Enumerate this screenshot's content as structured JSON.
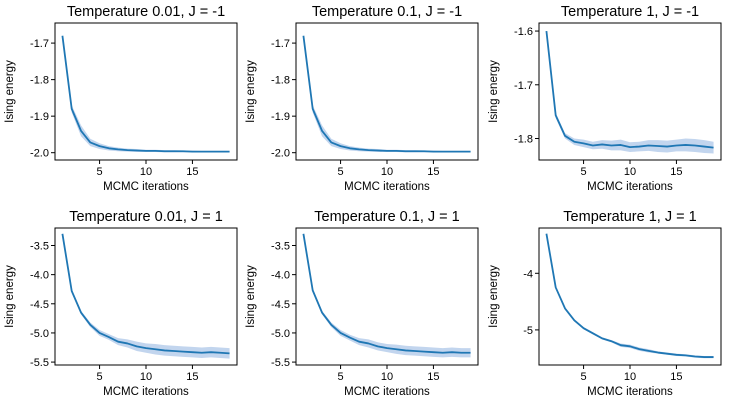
{
  "chart_data": [
    {
      "type": "line",
      "title": "Temperature 0.01, J = -1",
      "xlabel": "MCMC iterations",
      "ylabel": "Ising energy",
      "xlim": [
        0.2,
        19.8
      ],
      "ylim": [
        -2.02,
        -1.645
      ],
      "xticks": [
        5,
        10,
        15
      ],
      "yticks": [
        -2.0,
        -1.9,
        -1.8,
        -1.7
      ],
      "ytick_labels": [
        "-2.0",
        "-1.9",
        "-1.8",
        "-1.7"
      ],
      "x": [
        1,
        2,
        3,
        4,
        5,
        6,
        7,
        8,
        9,
        10,
        11,
        12,
        13,
        14,
        15,
        16,
        17,
        18,
        19
      ],
      "series": [
        {
          "name": "mean",
          "color": "#1f77b4",
          "band_color": "#aec7e8",
          "values": [
            -1.68,
            -1.88,
            -1.94,
            -1.972,
            -1.982,
            -1.988,
            -1.991,
            -1.993,
            -1.994,
            -1.995,
            -1.995,
            -1.996,
            -1.996,
            -1.996,
            -1.997,
            -1.997,
            -1.997,
            -1.997,
            -1.997
          ],
          "lower": [
            -1.68,
            -1.89,
            -1.955,
            -1.982,
            -1.99,
            -1.994,
            -1.996,
            -1.997,
            -1.998,
            -1.998,
            -1.998,
            -1.999,
            -1.999,
            -1.999,
            -1.999,
            -1.999,
            -1.999,
            -1.999,
            -1.999
          ],
          "upper": [
            -1.68,
            -1.87,
            -1.925,
            -1.962,
            -1.974,
            -1.982,
            -1.986,
            -1.989,
            -1.99,
            -1.992,
            -1.992,
            -1.993,
            -1.993,
            -1.994,
            -1.994,
            -1.995,
            -1.995,
            -1.995,
            -1.995
          ]
        }
      ]
    },
    {
      "type": "line",
      "title": "Temperature 0.1, J = -1",
      "xlabel": "MCMC iterations",
      "ylabel": "Ising energy",
      "xlim": [
        0.2,
        19.8
      ],
      "ylim": [
        -2.02,
        -1.645
      ],
      "xticks": [
        5,
        10,
        15
      ],
      "yticks": [
        -2.0,
        -1.9,
        -1.8,
        -1.7
      ],
      "ytick_labels": [
        "-2.0",
        "-1.9",
        "-1.8",
        "-1.7"
      ],
      "x": [
        1,
        2,
        3,
        4,
        5,
        6,
        7,
        8,
        9,
        10,
        11,
        12,
        13,
        14,
        15,
        16,
        17,
        18,
        19
      ],
      "series": [
        {
          "name": "mean",
          "color": "#1f77b4",
          "band_color": "#aec7e8",
          "values": [
            -1.68,
            -1.88,
            -1.94,
            -1.972,
            -1.982,
            -1.988,
            -1.991,
            -1.993,
            -1.994,
            -1.995,
            -1.995,
            -1.996,
            -1.996,
            -1.996,
            -1.997,
            -1.997,
            -1.997,
            -1.997,
            -1.997
          ],
          "lower": [
            -1.68,
            -1.89,
            -1.955,
            -1.982,
            -1.99,
            -1.994,
            -1.996,
            -1.997,
            -1.998,
            -1.998,
            -1.998,
            -1.999,
            -1.999,
            -1.999,
            -1.999,
            -1.999,
            -1.999,
            -1.999,
            -1.999
          ],
          "upper": [
            -1.68,
            -1.87,
            -1.925,
            -1.962,
            -1.974,
            -1.982,
            -1.986,
            -1.989,
            -1.99,
            -1.992,
            -1.992,
            -1.993,
            -1.993,
            -1.994,
            -1.994,
            -1.995,
            -1.995,
            -1.995,
            -1.995
          ]
        }
      ]
    },
    {
      "type": "line",
      "title": "Temperature 1, J = -1",
      "xlabel": "MCMC iterations",
      "ylabel": "Ising energy",
      "xlim": [
        0.2,
        19.8
      ],
      "ylim": [
        -1.84,
        -1.585
      ],
      "xticks": [
        5,
        10,
        15
      ],
      "yticks": [
        -1.8,
        -1.7,
        -1.6
      ],
      "ytick_labels": [
        "-1.8",
        "-1.7",
        "-1.6"
      ],
      "x": [
        1,
        2,
        3,
        4,
        5,
        6,
        7,
        8,
        9,
        10,
        11,
        12,
        13,
        14,
        15,
        16,
        17,
        18,
        19
      ],
      "series": [
        {
          "name": "mean",
          "color": "#1f77b4",
          "band_color": "#aec7e8",
          "values": [
            -1.6,
            -1.757,
            -1.795,
            -1.806,
            -1.809,
            -1.813,
            -1.811,
            -1.813,
            -1.812,
            -1.816,
            -1.815,
            -1.813,
            -1.814,
            -1.815,
            -1.813,
            -1.812,
            -1.813,
            -1.815,
            -1.817
          ],
          "lower": [
            -1.6,
            -1.762,
            -1.8,
            -1.812,
            -1.816,
            -1.82,
            -1.819,
            -1.822,
            -1.822,
            -1.825,
            -1.824,
            -1.823,
            -1.825,
            -1.826,
            -1.824,
            -1.824,
            -1.825,
            -1.827,
            -1.828
          ],
          "upper": [
            -1.6,
            -1.752,
            -1.79,
            -1.8,
            -1.802,
            -1.806,
            -1.803,
            -1.804,
            -1.802,
            -1.807,
            -1.806,
            -1.803,
            -1.803,
            -1.804,
            -1.802,
            -1.8,
            -1.801,
            -1.803,
            -1.806
          ]
        }
      ]
    },
    {
      "type": "line",
      "title": "Temperature 0.01, J = 1",
      "xlabel": "MCMC iterations",
      "ylabel": "Ising energy",
      "xlim": [
        0.2,
        19.8
      ],
      "ylim": [
        -5.55,
        -3.2
      ],
      "xticks": [
        5,
        10,
        15
      ],
      "yticks": [
        -5.5,
        -5.0,
        -4.5,
        -4.0,
        -3.5
      ],
      "ytick_labels": [
        "-5.5",
        "-5.0",
        "-4.5",
        "-4.0",
        "-3.5"
      ],
      "x": [
        1,
        2,
        3,
        4,
        5,
        6,
        7,
        8,
        9,
        10,
        11,
        12,
        13,
        14,
        15,
        16,
        17,
        18,
        19
      ],
      "series": [
        {
          "name": "mean",
          "color": "#1f77b4",
          "band_color": "#aec7e8",
          "values": [
            -3.3,
            -4.28,
            -4.65,
            -4.86,
            -5.0,
            -5.07,
            -5.15,
            -5.18,
            -5.23,
            -5.26,
            -5.28,
            -5.3,
            -5.31,
            -5.32,
            -5.33,
            -5.34,
            -5.33,
            -5.34,
            -5.35
          ],
          "lower": [
            -3.3,
            -4.3,
            -4.68,
            -4.9,
            -5.05,
            -5.12,
            -5.21,
            -5.25,
            -5.31,
            -5.34,
            -5.37,
            -5.39,
            -5.4,
            -5.41,
            -5.42,
            -5.43,
            -5.42,
            -5.43,
            -5.44
          ],
          "upper": [
            -3.3,
            -4.26,
            -4.62,
            -4.82,
            -4.95,
            -5.02,
            -5.09,
            -5.11,
            -5.15,
            -5.18,
            -5.19,
            -5.21,
            -5.22,
            -5.23,
            -5.24,
            -5.25,
            -5.24,
            -5.25,
            -5.26
          ]
        }
      ]
    },
    {
      "type": "line",
      "title": "Temperature 0.1, J = 1",
      "xlabel": "MCMC iterations",
      "ylabel": "Ising energy",
      "xlim": [
        0.2,
        19.8
      ],
      "ylim": [
        -5.55,
        -3.2
      ],
      "xticks": [
        5,
        10,
        15
      ],
      "yticks": [
        -5.5,
        -5.0,
        -4.5,
        -4.0,
        -3.5
      ],
      "ytick_labels": [
        "-5.5",
        "-5.0",
        "-4.5",
        "-4.0",
        "-3.5"
      ],
      "x": [
        1,
        2,
        3,
        4,
        5,
        6,
        7,
        8,
        9,
        10,
        11,
        12,
        13,
        14,
        15,
        16,
        17,
        18,
        19
      ],
      "series": [
        {
          "name": "mean",
          "color": "#1f77b4",
          "band_color": "#aec7e8",
          "values": [
            -3.3,
            -4.27,
            -4.65,
            -4.86,
            -5.0,
            -5.08,
            -5.15,
            -5.18,
            -5.23,
            -5.26,
            -5.28,
            -5.3,
            -5.31,
            -5.32,
            -5.33,
            -5.34,
            -5.33,
            -5.34,
            -5.34
          ],
          "lower": [
            -3.3,
            -4.29,
            -4.68,
            -4.9,
            -5.05,
            -5.13,
            -5.21,
            -5.25,
            -5.3,
            -5.33,
            -5.36,
            -5.38,
            -5.39,
            -5.4,
            -5.41,
            -5.42,
            -5.41,
            -5.42,
            -5.42
          ],
          "upper": [
            -3.3,
            -4.25,
            -4.62,
            -4.82,
            -4.95,
            -5.03,
            -5.09,
            -5.11,
            -5.16,
            -5.19,
            -5.2,
            -5.22,
            -5.23,
            -5.24,
            -5.25,
            -5.26,
            -5.25,
            -5.26,
            -5.26
          ]
        }
      ]
    },
    {
      "type": "line",
      "title": "Temperature 1, J = 1",
      "xlabel": "MCMC iterations",
      "ylabel": "Ising energy",
      "xlim": [
        0.2,
        19.8
      ],
      "ylim": [
        -5.62,
        -3.2
      ],
      "xticks": [
        5,
        10,
        15
      ],
      "yticks": [
        -5,
        -4
      ],
      "ytick_labels": [
        "-5",
        "-4"
      ],
      "x": [
        1,
        2,
        3,
        4,
        5,
        6,
        7,
        8,
        9,
        10,
        11,
        12,
        13,
        14,
        15,
        16,
        17,
        18,
        19
      ],
      "series": [
        {
          "name": "mean",
          "color": "#1f77b4",
          "band_color": "#aec7e8",
          "values": [
            -3.3,
            -4.25,
            -4.62,
            -4.83,
            -4.97,
            -5.06,
            -5.15,
            -5.2,
            -5.27,
            -5.29,
            -5.34,
            -5.37,
            -5.4,
            -5.42,
            -5.44,
            -5.45,
            -5.47,
            -5.48,
            -5.48
          ],
          "lower": [
            -3.3,
            -4.26,
            -4.64,
            -4.85,
            -4.99,
            -5.08,
            -5.17,
            -5.22,
            -5.3,
            -5.32,
            -5.37,
            -5.4,
            -5.42,
            -5.44,
            -5.46,
            -5.47,
            -5.49,
            -5.5,
            -5.5
          ],
          "upper": [
            -3.3,
            -4.24,
            -4.6,
            -4.81,
            -4.95,
            -5.04,
            -5.13,
            -5.18,
            -5.24,
            -5.26,
            -5.31,
            -5.34,
            -5.38,
            -5.4,
            -5.42,
            -5.43,
            -5.45,
            -5.46,
            -5.46
          ]
        }
      ]
    }
  ]
}
